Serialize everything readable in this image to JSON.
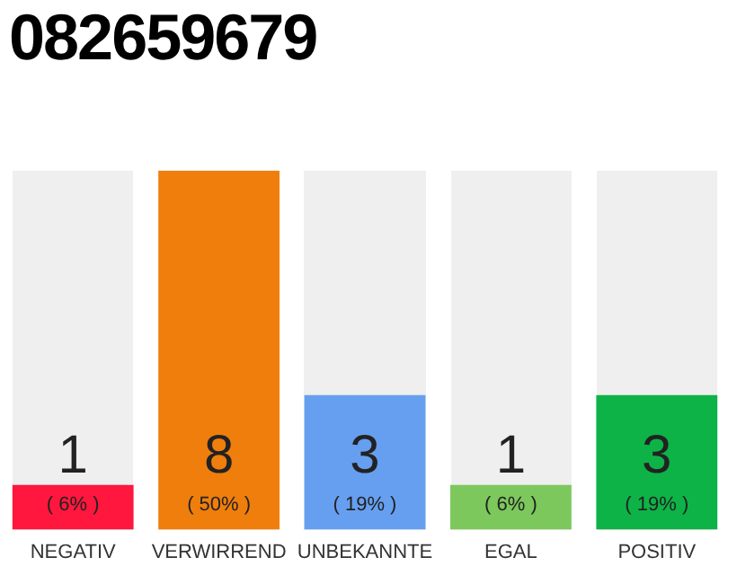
{
  "chart_data": {
    "type": "bar",
    "title": "082659679",
    "categories": [
      "NEGATIV",
      "VERWIRREND",
      "UNBEKANNTE",
      "EGAL",
      "POSITIV"
    ],
    "values": [
      1,
      8,
      3,
      1,
      3
    ],
    "colors": [
      "#ff173d",
      "#f07e0c",
      "#669ff0",
      "#7cc85d",
      "#0db347"
    ],
    "value_labels": [
      "1",
      "8",
      "3",
      "1",
      "3"
    ],
    "annotations": [
      "( 6% )",
      "( 50% )",
      "( 19% )",
      "( 6% )",
      "( 19% )"
    ],
    "grid": false,
    "legend": false,
    "tick_labels": "x"
  }
}
